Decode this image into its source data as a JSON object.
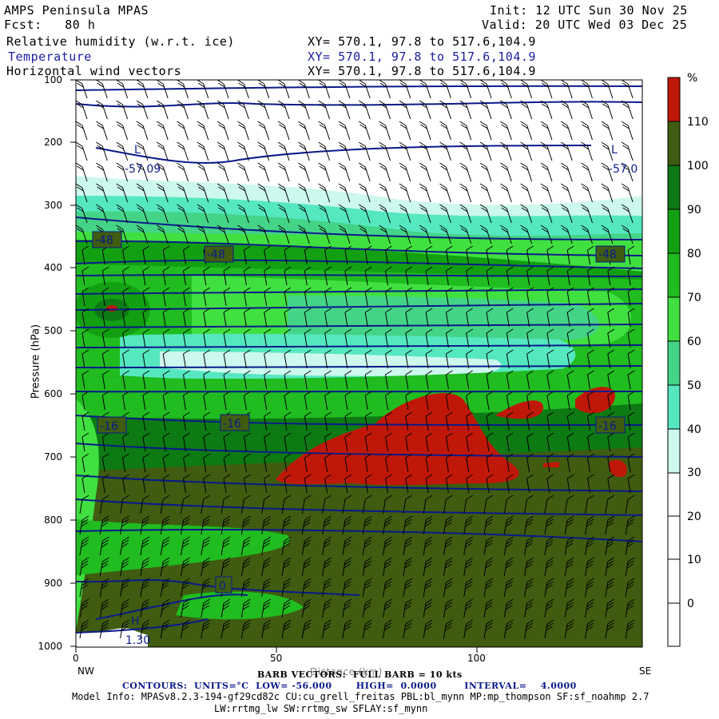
{
  "header": {
    "left1": "AMPS Peninsula MPAS",
    "left2": "Fcst:   80 h",
    "init": "Init: 12 UTC Sun 30 Nov 25",
    "valid": "Valid: 20 UTC Wed 03 Dec 25",
    "fields": [
      {
        "name": "Relative humidity (w.r.t. ice)",
        "xy": "XY= 570.1, 97.8 to 517.6,104.9"
      },
      {
        "name": "Temperature",
        "xy": "XY= 570.1, 97.8 to 517.6,104.9"
      },
      {
        "name": "Horizontal wind vectors",
        "xy": "XY= 570.1, 97.8 to 517.6,104.9"
      }
    ]
  },
  "chart_data": {
    "type": "heatmap",
    "title": "Relative humidity (w.r.t. ice) / Temperature / Horizontal wind vectors",
    "ylabel": "Pressure (hPa)",
    "xlabel": "Distance (km)",
    "yticks": [
      "100",
      "200",
      "300",
      "400",
      "500",
      "600",
      "700",
      "800",
      "900",
      "1000"
    ],
    "yvalues": [
      100,
      200,
      300,
      400,
      500,
      600,
      700,
      800,
      900,
      1000
    ],
    "ylim": [
      1000,
      100
    ],
    "xticks": [
      "0",
      "50",
      "100"
    ],
    "xvalues": [
      0,
      50,
      100
    ],
    "xlim": [
      0,
      141
    ],
    "x_endpoints": {
      "left": "NW",
      "right": "SE"
    },
    "colorbar": {
      "unit": "%",
      "labels": [
        "110",
        "100",
        "90",
        "80",
        "70",
        "60",
        "50",
        "40",
        "30",
        "20",
        "10",
        "0"
      ],
      "levels": [
        0,
        10,
        20,
        30,
        40,
        50,
        60,
        70,
        80,
        90,
        100,
        110
      ],
      "colors": [
        "#ffffff",
        "#ffffff",
        "#ffffff",
        "#ccf8ee",
        "#55e8c0",
        "#44d488",
        "#40e040",
        "#20bc20",
        "#12a012",
        "#0d7a14",
        "#3f5c10",
        "#3f5c10",
        "#c01808"
      ]
    },
    "temperature_contours": {
      "units": "°C",
      "low": -56.0,
      "high": 0.0,
      "interval": 4.0,
      "labels": [
        "-48",
        "-48",
        "-48",
        "-16",
        "-16",
        "-16",
        "0"
      ],
      "extrema": [
        {
          "type": "L",
          "value": "-57.09"
        },
        {
          "type": "L",
          "value": "-57.0"
        },
        {
          "type": "H",
          "value": "1.30"
        }
      ]
    }
  },
  "footer": {
    "barb": "BARB VECTORS:  FULL BARB = 10 kts",
    "overlay": "Distance (km)",
    "contours_line": "CONTOURS:  UNITS=°C  LOW= -56.000       HIGH=  0.0000        INTERVAL=    4.0000",
    "model_info": "Model Info: MPASv8.2.3-194-gf29cd82c CU:cu_grell_freitas PBL:bl_mynn MP:mp_thompson SF:sf_noahmp 2.7",
    "model_info2": "LW:rrtmg_lw SW:rrtmg_sw SFLAY:sf_mynn"
  }
}
